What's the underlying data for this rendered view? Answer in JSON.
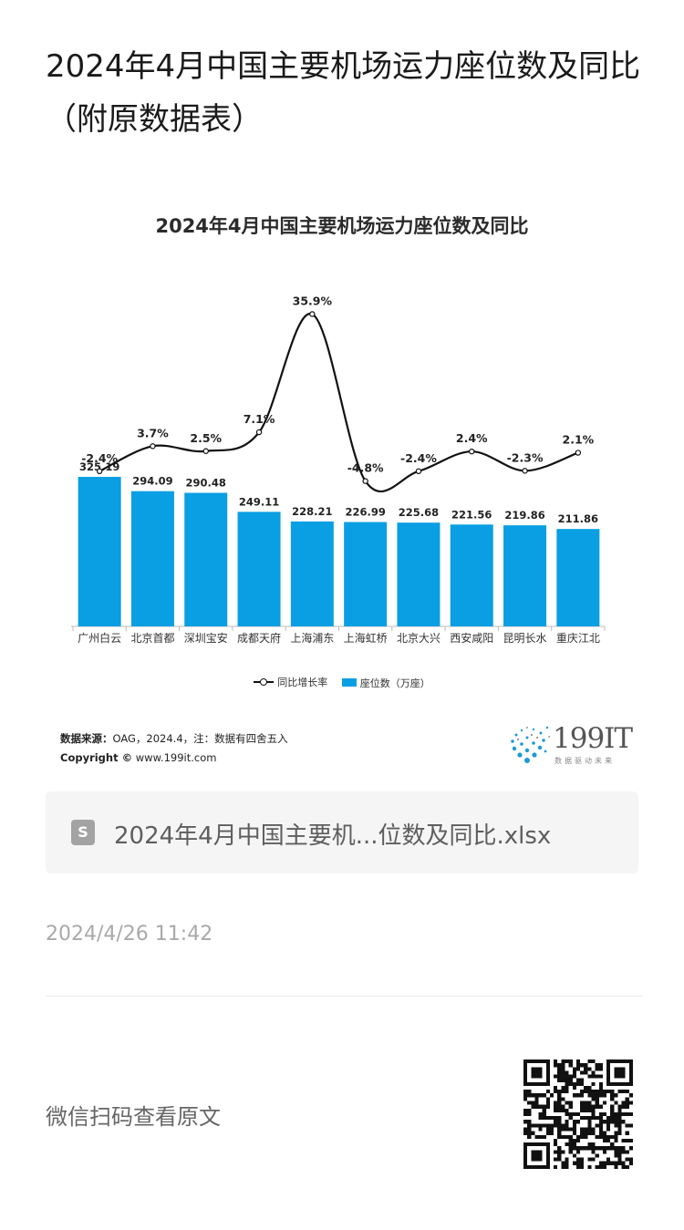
{
  "article": {
    "title": "2024年4月中国主要机场运力座位数及同比（附原数据表）"
  },
  "chart_data": {
    "type": "bar",
    "title": "2024年4月中国主要机场运力座位数及同比",
    "categories": [
      "广州白云",
      "北京首都",
      "深圳宝安",
      "成都天府",
      "上海浦东",
      "上海虹桥",
      "北京大兴",
      "西安咸阳",
      "昆明长水",
      "重庆江北"
    ],
    "series": [
      {
        "name": "座位数（万座）",
        "type": "bar",
        "color": "#0a9fe3",
        "values": [
          325.19,
          294.09,
          290.48,
          249.11,
          228.21,
          226.99,
          225.68,
          221.56,
          219.86,
          211.86
        ],
        "labels": [
          "325.19",
          "294.09",
          "290.48",
          "249.11",
          "228.21",
          "226.99",
          "225.68",
          "221.56",
          "219.86",
          "211.86"
        ]
      },
      {
        "name": "同比增长率",
        "type": "line",
        "color": "#111111",
        "values": [
          -2.4,
          3.7,
          2.5,
          7.1,
          35.9,
          -4.8,
          -2.4,
          2.4,
          -2.3,
          2.1
        ],
        "labels": [
          "-2.4%",
          "3.7%",
          "2.5%",
          "7.1%",
          "35.9%",
          "-4.8%",
          "-2.4%",
          "2.4%",
          "-2.3%",
          "2.1%"
        ]
      }
    ],
    "legend": [
      "同比增长率",
      "座位数（万座）"
    ],
    "legend_position": "bottom",
    "grid": false,
    "source_label": "数据来源：",
    "source_text": "OAG，2024.4，注：数据有四舍五入",
    "copyright_label": "Copyright ©",
    "copyright_url": "www.199it.com",
    "brand_name": "199IT",
    "brand_tagline": "数据驱动未来"
  },
  "file": {
    "icon": "spreadsheet-icon",
    "icon_glyph": "S",
    "name": "2024年4月中国主要机...位数及同比.xlsx"
  },
  "timestamp": "2024/4/26 11:42",
  "footer": {
    "scan_label": "微信扫码查看原文"
  }
}
